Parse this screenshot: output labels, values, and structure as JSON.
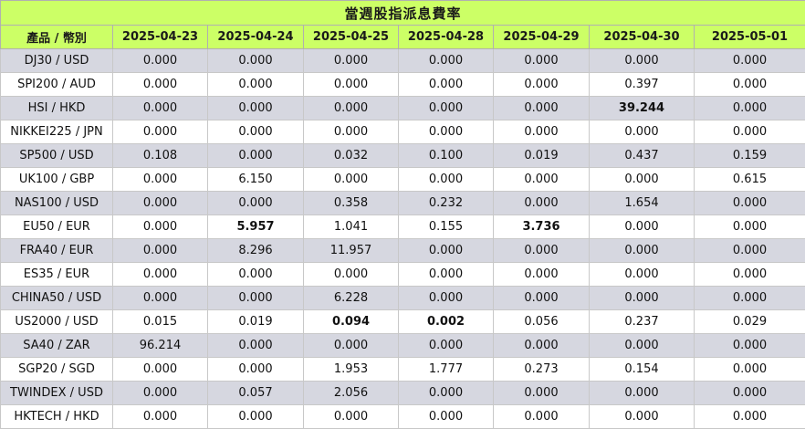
{
  "title": "當週股指派息費率",
  "header_label": "產品 / 幣別",
  "dates": [
    "2025-04-23",
    "2025-04-24",
    "2025-04-25",
    "2025-04-28",
    "2025-04-29",
    "2025-04-30",
    "2025-05-01"
  ],
  "rows": [
    {
      "product": "DJ30 / USD",
      "values": [
        "0.000",
        "0.000",
        "0.000",
        "0.000",
        "0.000",
        "0.000",
        "0.000"
      ],
      "bold": []
    },
    {
      "product": "SPI200 / AUD",
      "values": [
        "0.000",
        "0.000",
        "0.000",
        "0.000",
        "0.000",
        "0.397",
        "0.000"
      ],
      "bold": []
    },
    {
      "product": "HSI / HKD",
      "values": [
        "0.000",
        "0.000",
        "0.000",
        "0.000",
        "0.000",
        "39.244",
        "0.000"
      ],
      "bold": [
        5
      ]
    },
    {
      "product": "NIKKEI225 / JPN",
      "values": [
        "0.000",
        "0.000",
        "0.000",
        "0.000",
        "0.000",
        "0.000",
        "0.000"
      ],
      "bold": []
    },
    {
      "product": "SP500 / USD",
      "values": [
        "0.108",
        "0.000",
        "0.032",
        "0.100",
        "0.019",
        "0.437",
        "0.159"
      ],
      "bold": []
    },
    {
      "product": "UK100 / GBP",
      "values": [
        "0.000",
        "6.150",
        "0.000",
        "0.000",
        "0.000",
        "0.000",
        "0.615"
      ],
      "bold": []
    },
    {
      "product": "NAS100 / USD",
      "values": [
        "0.000",
        "0.000",
        "0.358",
        "0.232",
        "0.000",
        "1.654",
        "0.000"
      ],
      "bold": []
    },
    {
      "product": "EU50 / EUR",
      "values": [
        "0.000",
        "5.957",
        "1.041",
        "0.155",
        "3.736",
        "0.000",
        "0.000"
      ],
      "bold": [
        1,
        4
      ]
    },
    {
      "product": "FRA40 / EUR",
      "values": [
        "0.000",
        "8.296",
        "11.957",
        "0.000",
        "0.000",
        "0.000",
        "0.000"
      ],
      "bold": []
    },
    {
      "product": "ES35 / EUR",
      "values": [
        "0.000",
        "0.000",
        "0.000",
        "0.000",
        "0.000",
        "0.000",
        "0.000"
      ],
      "bold": []
    },
    {
      "product": "CHINA50 / USD",
      "values": [
        "0.000",
        "0.000",
        "6.228",
        "0.000",
        "0.000",
        "0.000",
        "0.000"
      ],
      "bold": []
    },
    {
      "product": "US2000 / USD",
      "values": [
        "0.015",
        "0.019",
        "0.094",
        "0.002",
        "0.056",
        "0.237",
        "0.029"
      ],
      "bold": [
        2,
        3
      ]
    },
    {
      "product": "SA40 / ZAR",
      "values": [
        "96.214",
        "0.000",
        "0.000",
        "0.000",
        "0.000",
        "0.000",
        "0.000"
      ],
      "bold": []
    },
    {
      "product": "SGP20 / SGD",
      "values": [
        "0.000",
        "0.000",
        "1.953",
        "1.777",
        "0.273",
        "0.154",
        "0.000"
      ],
      "bold": []
    },
    {
      "product": "TWINDEX / USD",
      "values": [
        "0.000",
        "0.057",
        "2.056",
        "0.000",
        "0.000",
        "0.000",
        "0.000"
      ],
      "bold": []
    },
    {
      "product": "HKTECH / HKD",
      "values": [
        "0.000",
        "0.000",
        "0.000",
        "0.000",
        "0.000",
        "0.000",
        "0.000"
      ],
      "bold": []
    }
  ],
  "colors": {
    "header_bg": "#ccff66",
    "row_odd_bg": "#d6d7e0",
    "row_even_bg": "#ffffff"
  }
}
